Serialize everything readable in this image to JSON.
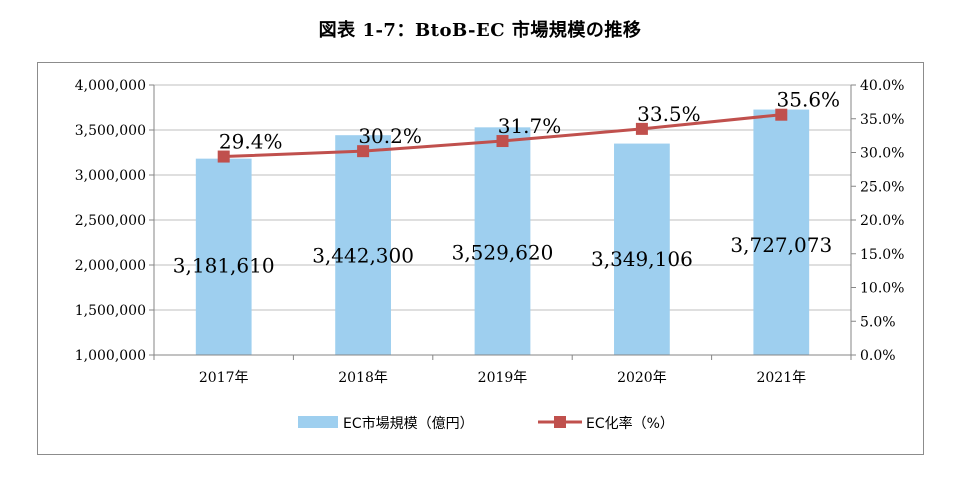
{
  "title": "図表 1-7：BtoB-EC 市場規模の推移",
  "chart_data": {
    "type": "bar",
    "categories": [
      "2017年",
      "2018年",
      "2019年",
      "2020年",
      "2021年"
    ],
    "series": [
      {
        "name": "EC市場規模（億円）",
        "type": "bar",
        "axis": "left",
        "color": "#9ecfef",
        "values": [
          3181610,
          3442300,
          3529620,
          3349106,
          3727073
        ],
        "labels": [
          "3,181,610",
          "3,442,300",
          "3,529,620",
          "3,349,106",
          "3,727,073"
        ]
      },
      {
        "name": "EC化率（%）",
        "type": "line",
        "axis": "right",
        "color": "#c0504d",
        "values": [
          29.4,
          30.2,
          31.7,
          33.5,
          35.6
        ],
        "labels": [
          "29.4%",
          "30.2%",
          "31.7%",
          "33.5%",
          "35.6%"
        ]
      }
    ],
    "y_left": {
      "lim": [
        1000000,
        4000000
      ],
      "ticks": [
        1000000,
        1500000,
        2000000,
        2500000,
        3000000,
        3500000,
        4000000
      ],
      "tick_labels": [
        "1,000,000",
        "1,500,000",
        "2,000,000",
        "2,500,000",
        "3,000,000",
        "3,500,000",
        "4,000,000"
      ]
    },
    "y_right": {
      "lim": [
        0,
        40
      ],
      "ticks": [
        0,
        5,
        10,
        15,
        20,
        25,
        30,
        35,
        40
      ],
      "tick_labels": [
        "0.0%",
        "5.0%",
        "10.0%",
        "15.0%",
        "20.0%",
        "25.0%",
        "30.0%",
        "35.0%",
        "40.0%"
      ]
    },
    "grid": true,
    "legend": "bottom"
  }
}
